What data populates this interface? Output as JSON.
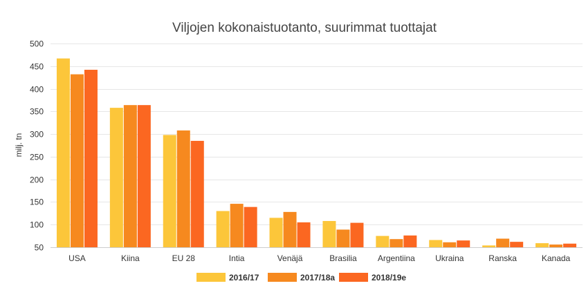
{
  "chart_data": {
    "type": "bar",
    "title": "Viljojen kokonaistuotanto, suurimmat tuottajat",
    "ylabel": "milj. tn",
    "xlabel": "",
    "ylim": [
      50,
      500
    ],
    "yticks": [
      50,
      100,
      150,
      200,
      250,
      300,
      350,
      400,
      450,
      500
    ],
    "grid": true,
    "legend_position": "bottom-center",
    "categories": [
      "USA",
      "Kiina",
      "EU 28",
      "Intia",
      "Venäjä",
      "Brasilia",
      "Argentiina",
      "Ukraina",
      "Ranska",
      "Kanada"
    ],
    "series": [
      {
        "name": "2016/17",
        "color": "#fcc63a",
        "values": [
          467,
          358,
          298,
          130,
          115,
          108,
          75,
          66,
          54,
          59
        ]
      },
      {
        "name": "2017/18a",
        "color": "#f6891f",
        "values": [
          432,
          364,
          308,
          146,
          128,
          89,
          68,
          61,
          69,
          56
        ]
      },
      {
        "name": "2018/19e",
        "color": "#fb6721",
        "values": [
          442,
          364,
          285,
          139,
          105,
          104,
          76,
          65,
          62,
          58
        ]
      }
    ]
  }
}
